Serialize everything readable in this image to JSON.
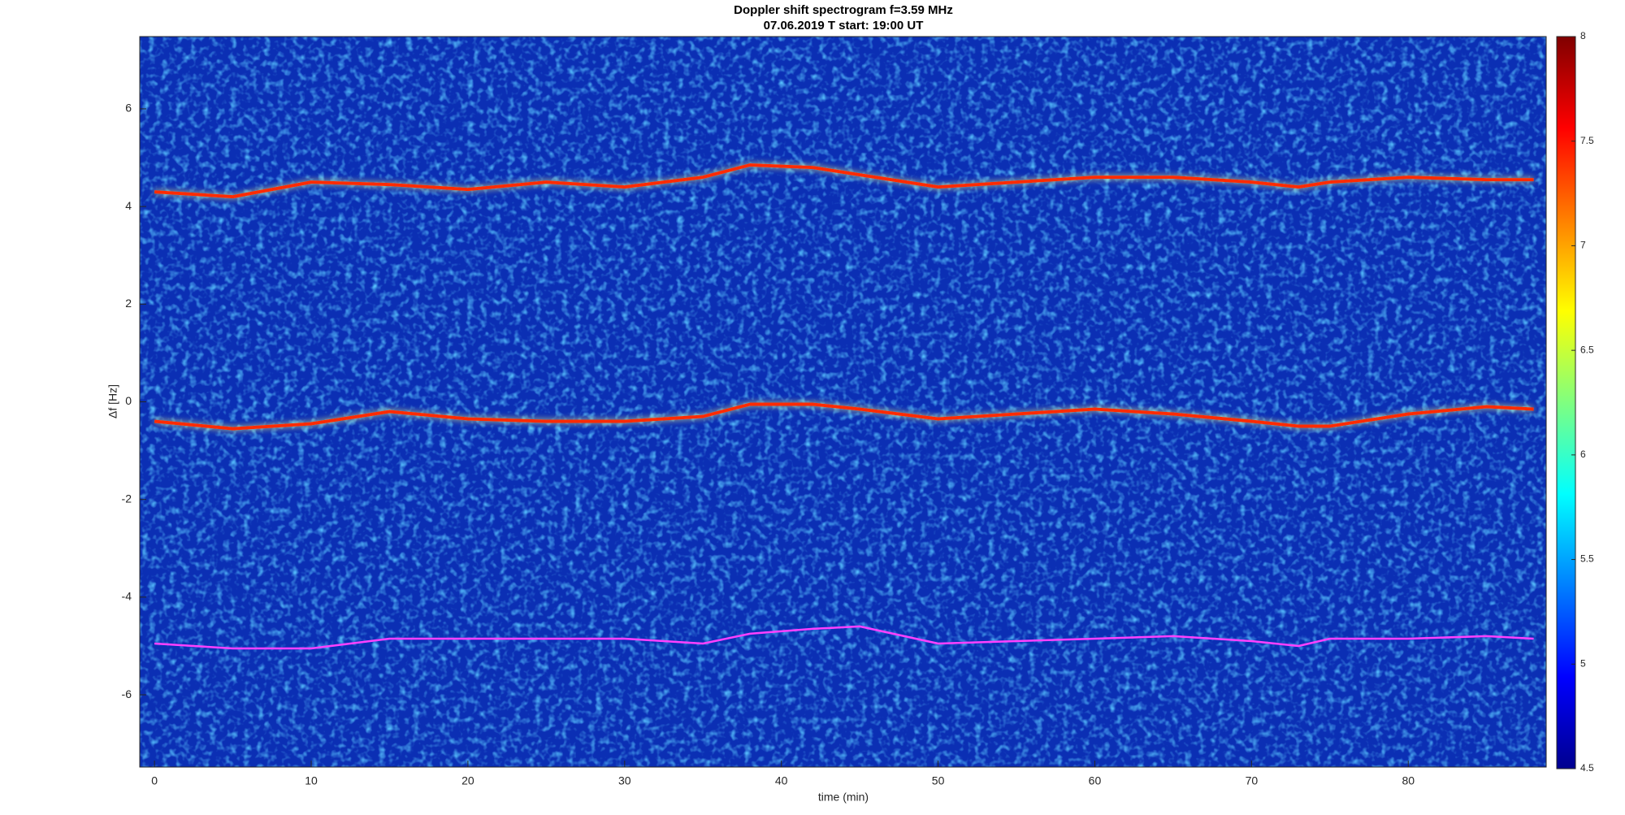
{
  "chart_data": {
    "type": "spectrogram",
    "title": "Doppler shift spectrogram f=3.59 MHz",
    "subtitle": "07.06.2019    T start: 19:00 UT",
    "x_label": "time (min)",
    "y_label": "Δf [Hz]",
    "xlim": [
      -0.94,
      88.8
    ],
    "xticks": [
      0,
      10,
      20,
      30,
      40,
      50,
      60,
      70,
      80
    ],
    "ylim": [
      -7.48,
      7.48
    ],
    "yticks": [
      -6,
      -4,
      -2,
      0,
      2,
      4,
      6
    ],
    "clim": [
      4.5,
      8
    ],
    "cticks": [
      4.5,
      5,
      5.5,
      6,
      6.5,
      7,
      7.5,
      8
    ],
    "colormap": "jet",
    "background": "#0b2fb4",
    "grid": false,
    "x": [
      0,
      5,
      10,
      15,
      20,
      25,
      30,
      35,
      38,
      42,
      45,
      50,
      55,
      60,
      65,
      70,
      73,
      75,
      80,
      85,
      88
    ],
    "series": [
      {
        "color": "#ff2a00",
        "values": [
          4.3,
          4.2,
          4.5,
          4.45,
          4.35,
          4.5,
          4.4,
          4.6,
          4.85,
          4.8,
          4.65,
          4.4,
          4.5,
          4.6,
          4.6,
          4.5,
          4.4,
          4.5,
          4.6,
          4.55,
          4.55
        ]
      },
      {
        "color": "#ff2a00",
        "values": [
          -0.4,
          -0.55,
          -0.45,
          -0.2,
          -0.35,
          -0.4,
          -0.4,
          -0.3,
          -0.05,
          -0.05,
          -0.15,
          -0.35,
          -0.25,
          -0.15,
          -0.25,
          -0.4,
          -0.5,
          -0.5,
          -0.25,
          -0.1,
          -0.15
        ]
      },
      {
        "color": "#ff40ff",
        "values": [
          -4.95,
          -5.05,
          -5.05,
          -4.85,
          -4.85,
          -4.85,
          -4.85,
          -4.95,
          -4.75,
          -4.65,
          -4.6,
          -4.95,
          -4.9,
          -4.85,
          -4.8,
          -4.9,
          -5.0,
          -4.85,
          -4.85,
          -4.8,
          -4.85
        ]
      }
    ]
  }
}
